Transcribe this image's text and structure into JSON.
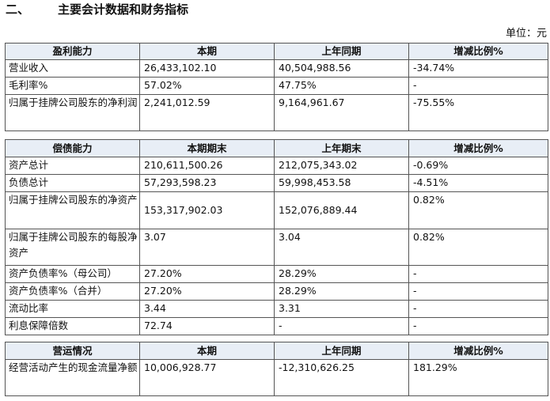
{
  "heading": {
    "number": "二、",
    "title": "主要会计数据和财务指标"
  },
  "unit": "单位：元",
  "profitability": {
    "headers": [
      "盈利能力",
      "本期",
      "上年同期",
      "增减比例%"
    ],
    "rows": [
      [
        "营业收入",
        "26,433,102.10",
        "40,504,988.56",
        "-34.74%"
      ],
      [
        "毛利率%",
        "57.02%",
        "47.75%",
        "-"
      ],
      [
        "归属于挂牌公司股东的净利润",
        "2,241,012.59",
        "9,164,961.67",
        "-75.55%"
      ]
    ]
  },
  "solvency": {
    "headers": [
      "偿债能力",
      "本期期末",
      "上年期末",
      "增减比例%"
    ],
    "rows": [
      [
        "资产总计",
        "210,611,500.26",
        "212,075,343.02",
        "-0.69%"
      ],
      [
        "负债总计",
        "57,293,598.23",
        "59,998,453.58",
        "-4.51%"
      ],
      [
        "归属于挂牌公司股东的净资产",
        "153,317,902.03",
        "152,076,889.44",
        "0.82%"
      ],
      [
        "归属于挂牌公司股东的每股净资产",
        "3.07",
        "3.04",
        "0.82%"
      ],
      [
        "资产负债率%（母公司）",
        "27.20%",
        "28.29%",
        "-"
      ],
      [
        "资产负债率%（合并）",
        "27.20%",
        "28.29%",
        "-"
      ],
      [
        "流动比率",
        "3.44",
        "3.31",
        "-"
      ],
      [
        "利息保障倍数",
        "72.74",
        "-",
        "-"
      ]
    ]
  },
  "operations": {
    "headers": [
      "营运情况",
      "本期",
      "上年同期",
      "增减比例%"
    ],
    "rows": [
      [
        "经营活动产生的现金流量净额",
        "10,006,928.77",
        "-12,310,626.25",
        "181.29%"
      ]
    ]
  }
}
